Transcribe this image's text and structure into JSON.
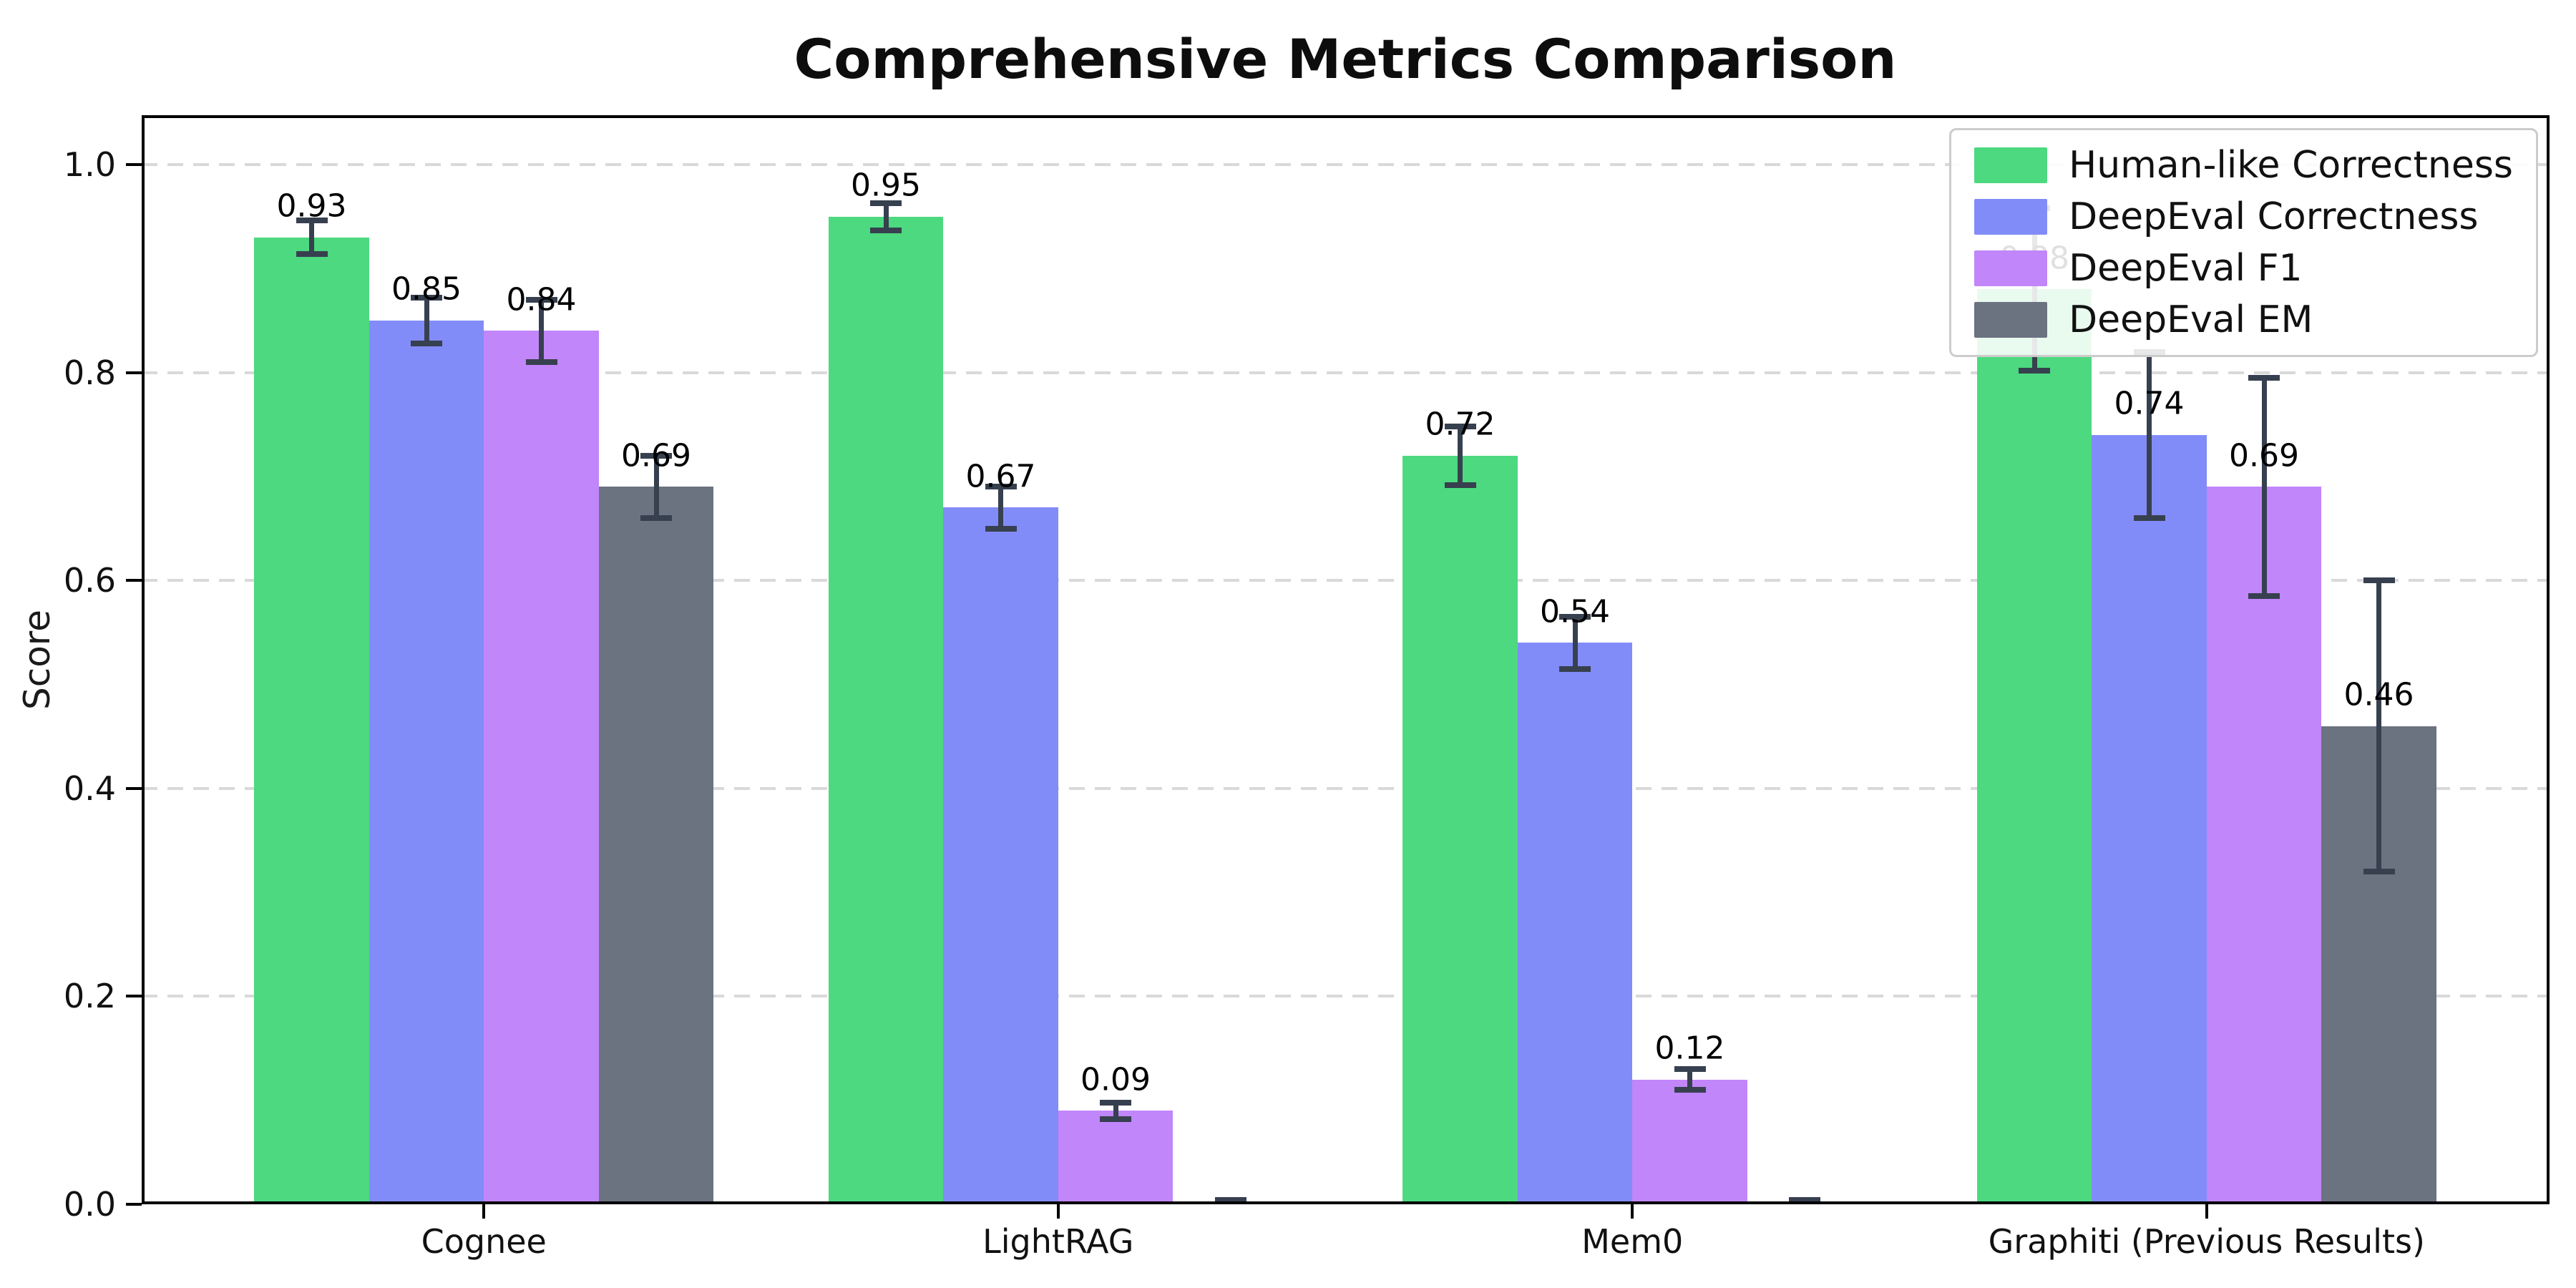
{
  "chart_data": {
    "type": "bar",
    "title": "Comprehensive Metrics Comparison",
    "ylabel": "Score",
    "xlabel": "",
    "categories": [
      "Cognee",
      "LightRAG",
      "Mem0",
      "Graphiti (Previous Results)"
    ],
    "series": [
      {
        "name": "Human-like Correctness",
        "color": "#4cd97f",
        "values": [
          0.93,
          0.95,
          0.72,
          0.88
        ],
        "errors": [
          0.016,
          0.013,
          0.028,
          0.078
        ],
        "labels": [
          "0.93",
          "0.95",
          "0.72",
          "0.88"
        ]
      },
      {
        "name": "DeepEval Correctness",
        "color": "#828cf8",
        "values": [
          0.85,
          0.67,
          0.54,
          0.74
        ],
        "errors": [
          0.022,
          0.02,
          0.025,
          0.08
        ],
        "labels": [
          "0.85",
          "0.67",
          "0.54",
          "0.74"
        ]
      },
      {
        "name": "DeepEval F1",
        "color": "#c186fa",
        "values": [
          0.84,
          0.09,
          0.12,
          0.69
        ],
        "errors": [
          0.03,
          0.008,
          0.01,
          0.105
        ],
        "labels": [
          "0.84",
          "0.09",
          "0.12",
          "0.69"
        ]
      },
      {
        "name": "DeepEval EM",
        "color": "#6b7280",
        "values": [
          0.69,
          0.0,
          0.0,
          0.46
        ],
        "errors": [
          0.03,
          0.004,
          0.004,
          0.14
        ],
        "labels": [
          "0.69",
          "",
          "",
          "0.46"
        ]
      }
    ],
    "y_ticks": [
      0.0,
      0.2,
      0.4,
      0.6,
      0.8,
      1.0
    ],
    "y_tick_labels": [
      "0.0",
      "0.2",
      "0.4",
      "0.6",
      "0.8",
      "1.0"
    ],
    "ylim": [
      0,
      1.0475
    ],
    "grid": {
      "axis": "y",
      "style": "dashed",
      "color": "#d9d9d9"
    },
    "legend": {
      "position": "upper right",
      "border_color": "#cccccc",
      "background": "#ffffff"
    },
    "error_bar_color": "#37404f",
    "spine_color": "#000000",
    "background": "#ffffff",
    "bar_label_offset": 0.03
  }
}
